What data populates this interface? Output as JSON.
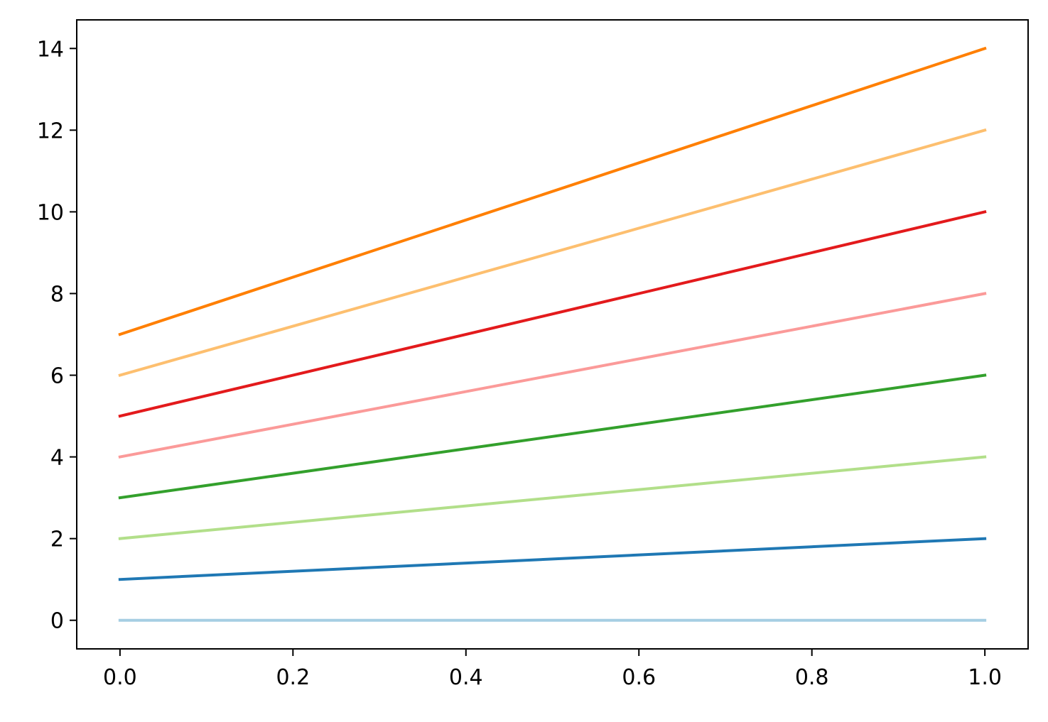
{
  "chart_data": {
    "type": "line",
    "title": "",
    "xlabel": "",
    "ylabel": "",
    "xlim": [
      -0.05,
      1.05
    ],
    "ylim": [
      -0.7,
      14.7
    ],
    "x_ticks": [
      0.0,
      0.2,
      0.4,
      0.6,
      0.8,
      1.0
    ],
    "x_tick_labels": [
      "0.0",
      "0.2",
      "0.4",
      "0.6",
      "0.8",
      "1.0"
    ],
    "y_ticks": [
      0,
      2,
      4,
      6,
      8,
      10,
      12,
      14
    ],
    "y_tick_labels": [
      "0",
      "2",
      "4",
      "6",
      "8",
      "10",
      "12",
      "14"
    ],
    "grid": false,
    "legend": "none",
    "x": [
      0.0,
      1.0
    ],
    "series": [
      {
        "values": [
          0,
          0
        ],
        "color": "#a6cee3"
      },
      {
        "values": [
          1,
          2
        ],
        "color": "#1f78b4"
      },
      {
        "values": [
          2,
          4
        ],
        "color": "#b2df8a"
      },
      {
        "values": [
          3,
          6
        ],
        "color": "#33a02c"
      },
      {
        "values": [
          4,
          8
        ],
        "color": "#fb9a99"
      },
      {
        "values": [
          5,
          10
        ],
        "color": "#e31a1c"
      },
      {
        "values": [
          6,
          12
        ],
        "color": "#fdbf6f"
      },
      {
        "values": [
          7,
          14
        ],
        "color": "#ff7f00"
      }
    ]
  }
}
